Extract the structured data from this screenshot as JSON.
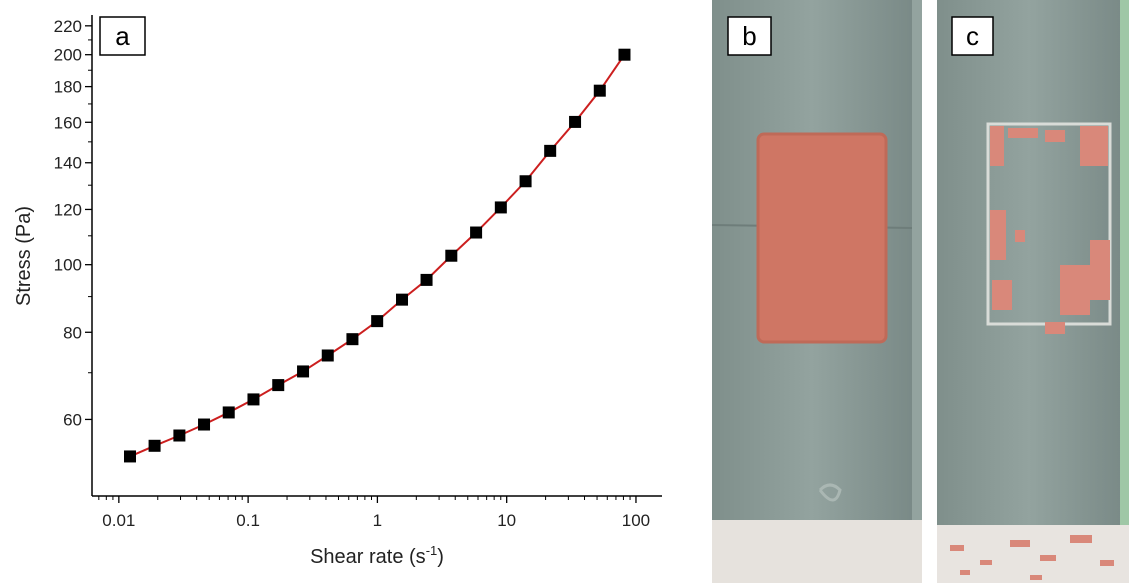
{
  "chart_data": {
    "type": "scatter-line",
    "panel_label": "a",
    "ylabel": "Stress (Pa)",
    "xlabel": {
      "text": "Shear rate (s",
      "sup": "-1",
      "tail": ")"
    },
    "xscale": "log",
    "yscale": "log",
    "xlim": [
      0.0062,
      159
    ],
    "ylim": [
      46.6,
      228
    ],
    "xticks": [
      0.01,
      0.1,
      1,
      10,
      100
    ],
    "yticks": [
      60,
      80,
      100,
      120,
      140,
      160,
      180,
      200,
      220
    ],
    "series": [
      {
        "color": "#cc1f1f",
        "marker_color": "#000000",
        "x": [
          0.0122,
          0.0189,
          0.0294,
          0.0456,
          0.0708,
          0.11,
          0.171,
          0.266,
          0.413,
          0.641,
          0.996,
          1.55,
          2.4,
          3.73,
          5.8,
          9.01,
          14.0,
          21.7,
          33.8,
          52.5,
          81.5
        ],
        "values": [
          53.1,
          55.0,
          56.9,
          59.0,
          61.4,
          64.1,
          67.2,
          70.3,
          74.1,
          78.2,
          83.0,
          89.1,
          95.1,
          103.0,
          111.2,
          120.8,
          131.7,
          145.6,
          160.2,
          177.6,
          200
        ]
      }
    ]
  },
  "photos": [
    {
      "label": "b"
    },
    {
      "label": "c"
    }
  ]
}
